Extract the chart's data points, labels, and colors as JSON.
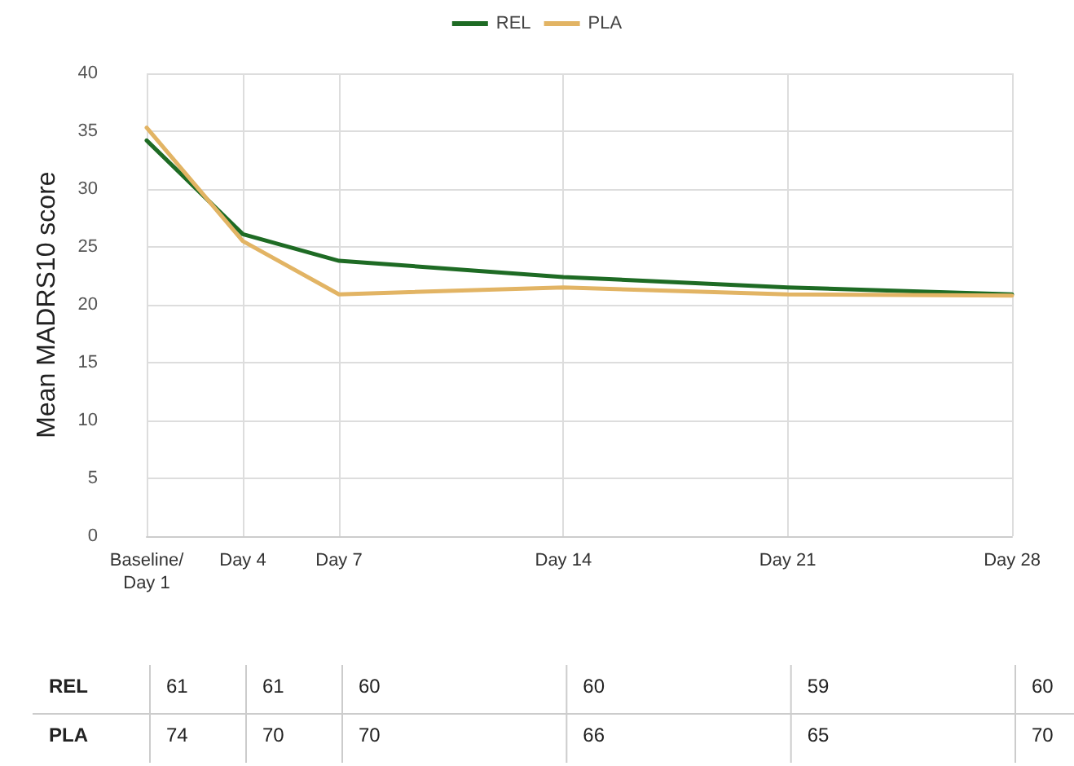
{
  "chart_data": {
    "type": "line",
    "ylabel": "Mean MADRS10 score",
    "categories": [
      "Baseline/\nDay 1",
      null,
      null,
      "Day 4",
      null,
      null,
      "Day 7",
      null,
      null,
      null,
      null,
      null,
      null,
      "Day 14",
      null,
      null,
      null,
      null,
      null,
      null,
      "Day 21",
      null,
      null,
      null,
      null,
      null,
      null,
      "Day 28"
    ],
    "series": [
      {
        "name": "REL",
        "color": "#1e6b24",
        "values": [
          34.2,
          null,
          null,
          26.1,
          null,
          null,
          23.8,
          null,
          null,
          null,
          null,
          null,
          null,
          22.4,
          null,
          null,
          null,
          null,
          null,
          null,
          21.5,
          null,
          null,
          null,
          null,
          null,
          null,
          20.9
        ]
      },
      {
        "name": "PLA",
        "color": "#e2b464",
        "values": [
          35.3,
          null,
          null,
          25.5,
          null,
          null,
          20.9,
          null,
          null,
          null,
          null,
          null,
          null,
          21.5,
          null,
          null,
          null,
          null,
          null,
          null,
          20.9,
          null,
          null,
          null,
          null,
          null,
          null,
          20.8
        ]
      }
    ],
    "ylim": [
      0,
      40
    ],
    "yticks": [
      0,
      5,
      10,
      15,
      20,
      25,
      30,
      35,
      40
    ],
    "grid": true,
    "legend": "top",
    "marker": "none",
    "line_style": "solid",
    "annotations": [
      "REL",
      "61",
      "61",
      "60",
      "60",
      "59",
      "60",
      "PLA",
      "74",
      "70",
      "70",
      "66",
      "65",
      "70"
    ]
  }
}
